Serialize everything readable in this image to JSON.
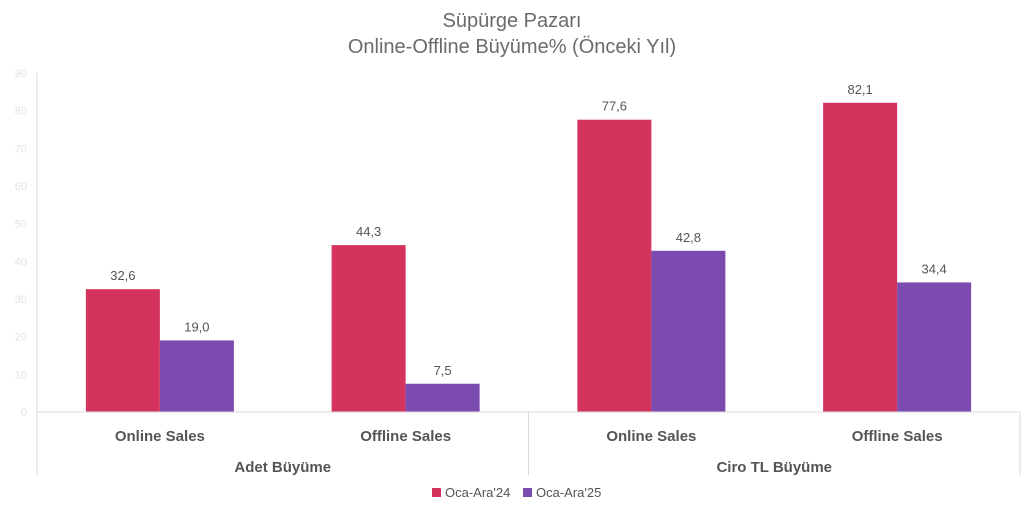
{
  "chart_data": {
    "type": "bar",
    "title": "Süpürge Pazarı",
    "subtitle": "Online-Offline Büyüme% (Önceki Yıl)",
    "groups": [
      {
        "label": "Adet Büyüme",
        "categories": [
          "Online Sales",
          "Offline Sales"
        ]
      },
      {
        "label": "Ciro TL Büyüme",
        "categories": [
          "Online Sales",
          "Offline Sales"
        ]
      }
    ],
    "categories": [
      "Online Sales",
      "Offline Sales",
      "Online Sales",
      "Offline Sales"
    ],
    "series": [
      {
        "name": "Oca-Ara'24",
        "color": "#d4335e",
        "values": [
          32.6,
          44.3,
          77.6,
          82.1
        ],
        "labels": [
          "32,6",
          "44,3",
          "77,6",
          "82,1"
        ]
      },
      {
        "name": "Oca-Ara'25",
        "color": "#7b4bb0",
        "values": [
          19.0,
          7.5,
          42.8,
          34.4
        ],
        "labels": [
          "19,0",
          "7,5",
          "42,8",
          "34,4"
        ]
      }
    ],
    "yticks": [
      "0",
      "10",
      "20",
      "30",
      "40",
      "50",
      "60",
      "70",
      "80",
      "90"
    ],
    "ylim": [
      0,
      90
    ],
    "grid": false,
    "legend": "bottom"
  }
}
